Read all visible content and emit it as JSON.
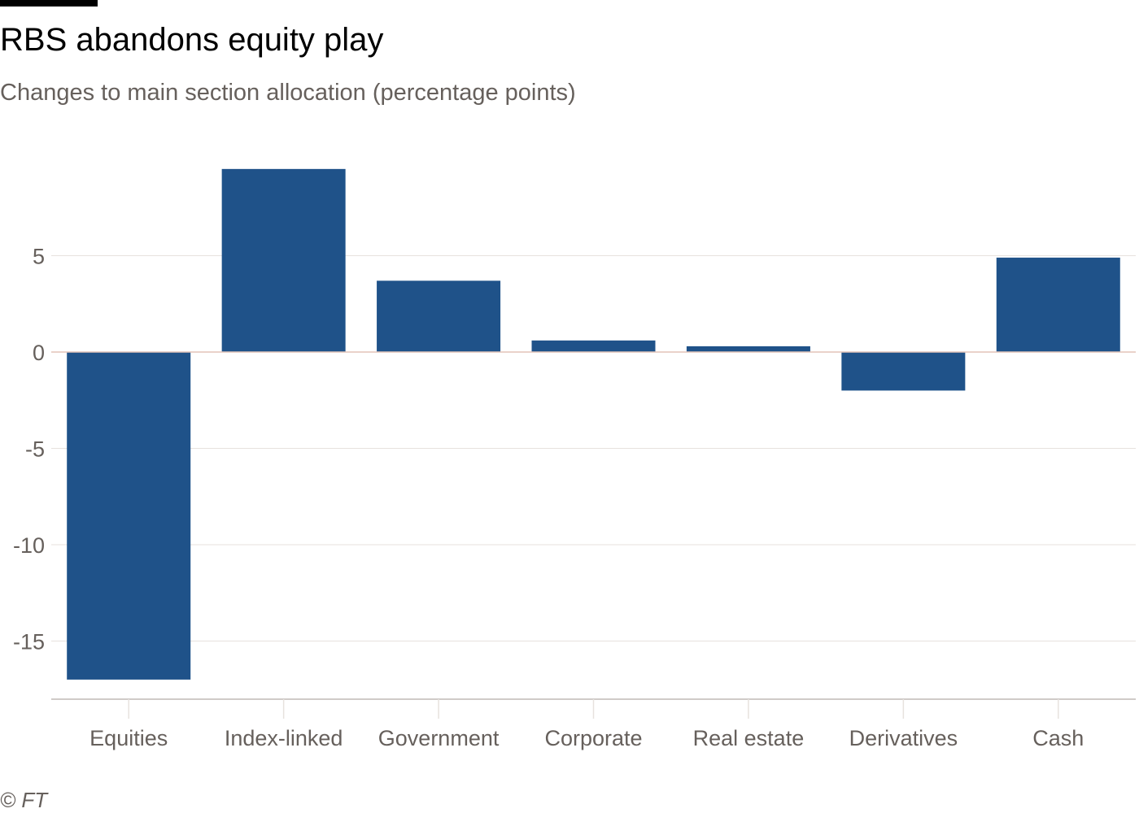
{
  "header": {
    "title": "RBS abandons equity play",
    "subtitle": "Changes to main section allocation (percentage points)"
  },
  "footer": {
    "source": "© FT"
  },
  "chart_data": {
    "type": "bar",
    "title": "RBS abandons equity play",
    "subtitle": "Changes to main section allocation (percentage points)",
    "categories": [
      "Equities",
      "Index-linked",
      "Government",
      "Corporate",
      "Real estate",
      "Derivatives",
      "Cash"
    ],
    "values": [
      -17.0,
      9.5,
      3.7,
      0.6,
      0.3,
      -2.0,
      4.9
    ],
    "yticks": [
      5,
      0,
      -5,
      -10,
      -15
    ],
    "ytick_labels": [
      "5",
      "0",
      "-5",
      "-10",
      "-15"
    ],
    "ylim": [
      -18,
      10.5
    ],
    "xlabel": "",
    "ylabel": "",
    "grid": true,
    "legend": "none",
    "colors": {
      "bar": "#1f5289",
      "grid": "#e7e2de",
      "zero_line": "#e3c4b8",
      "axis": "#b3aca7",
      "tick_text": "#66605c"
    }
  }
}
